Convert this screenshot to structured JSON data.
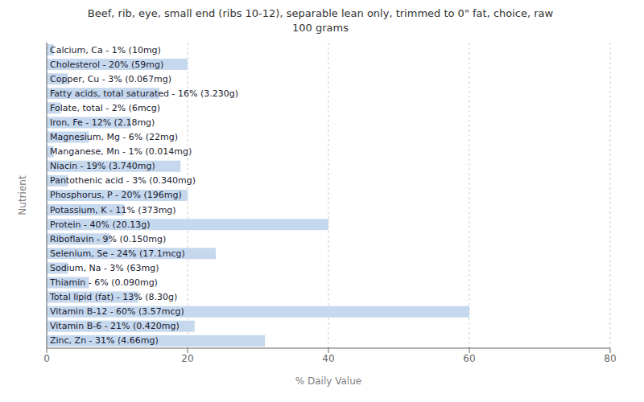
{
  "chart_data": {
    "type": "bar",
    "title": "Beef, rib, eye, small end (ribs 10-12), separable lean only, trimmed to 0\" fat, choice, raw\n100 grams",
    "xlabel": "% Daily Value",
    "ylabel": "Nutrient",
    "orientation": "horizontal",
    "categories": [
      "Calcium, Ca - 1% (10mg)",
      "Cholesterol - 20% (59mg)",
      "Copper, Cu - 3% (0.067mg)",
      "Fatty acids, total saturated - 16% (3.230g)",
      "Folate, total - 2% (6mcg)",
      "Iron, Fe - 12% (2.18mg)",
      "Magnesium, Mg - 6% (22mg)",
      "Manganese, Mn - 1% (0.014mg)",
      "Niacin - 19% (3.740mg)",
      "Pantothenic acid - 3% (0.340mg)",
      "Phosphorus, P - 20% (196mg)",
      "Potassium, K - 11% (373mg)",
      "Protein - 40% (20.13g)",
      "Riboflavin - 9% (0.150mg)",
      "Selenium, Se - 24% (17.1mcg)",
      "Sodium, Na - 3% (63mg)",
      "Thiamin - 6% (0.090mg)",
      "Total lipid (fat) - 13% (8.30g)",
      "Vitamin B-12 - 60% (3.57mcg)",
      "Vitamin B-6 - 21% (0.420mg)",
      "Zinc, Zn - 31% (4.66mg)"
    ],
    "values": [
      1,
      20,
      3,
      16,
      2,
      12,
      6,
      1,
      19,
      3,
      20,
      11,
      40,
      9,
      24,
      3,
      6,
      13,
      60,
      21,
      31
    ],
    "color": "#c5d8ee",
    "xlim": [
      0,
      80
    ],
    "xticks": [
      0,
      20,
      40,
      60,
      80
    ],
    "grid": true,
    "tick_labels": "x"
  }
}
